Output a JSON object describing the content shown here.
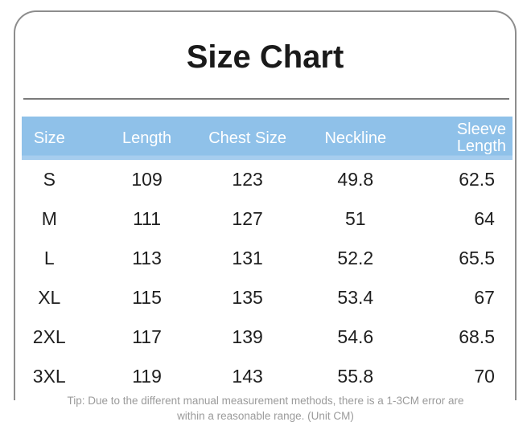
{
  "title": "Size Chart",
  "colors": {
    "header_background": "#8FC1E9",
    "header_text": "#ffffff",
    "body_text": "#1f1f1f",
    "card_border": "#8d8d8d",
    "divider": "#7a7a7a",
    "tip_text": "#9b9b9b"
  },
  "table": {
    "columns": [
      "Size",
      "Length",
      "Chest Size",
      "Neckline",
      "Sleeve Length"
    ],
    "rows": [
      {
        "size": "S",
        "length": "109",
        "chest": "123",
        "neckline": "49.8",
        "sleeve": "62.5"
      },
      {
        "size": "M",
        "length": "111",
        "chest": "127",
        "neckline": "51",
        "sleeve": "64"
      },
      {
        "size": "L",
        "length": "113",
        "chest": "131",
        "neckline": "52.2",
        "sleeve": "65.5"
      },
      {
        "size": "XL",
        "length": "115",
        "chest": "135",
        "neckline": "53.4",
        "sleeve": "67"
      },
      {
        "size": "2XL",
        "length": "117",
        "chest": "139",
        "neckline": "54.6",
        "sleeve": "68.5"
      },
      {
        "size": "3XL",
        "length": "119",
        "chest": "143",
        "neckline": "55.8",
        "sleeve": "70"
      }
    ]
  },
  "tip": {
    "line1": "Tip: Due to the different manual measurement methods, there is a 1-3CM error are",
    "line2": "within a reasonable range. (Unit CM)"
  }
}
